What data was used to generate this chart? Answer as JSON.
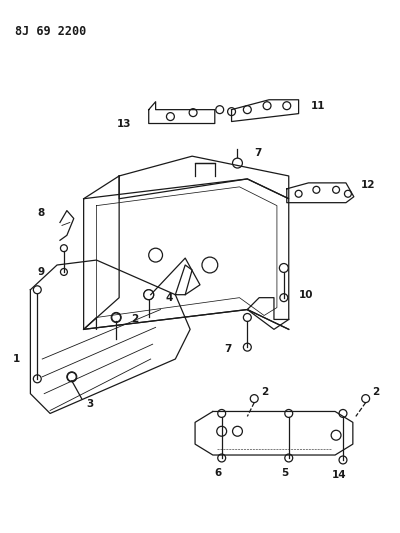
{
  "title_code": "8J 69 2200",
  "bg_color": "#ffffff",
  "line_color": "#1a1a1a",
  "lw": 0.9
}
